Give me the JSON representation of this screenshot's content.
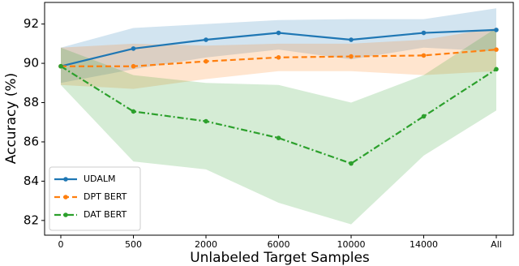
{
  "chart_data": {
    "type": "line",
    "xlabel": "Unlabeled Target Samples",
    "ylabel": "Accuracy (%)",
    "categories": [
      "0",
      "500",
      "2000",
      "6000",
      "10000",
      "14000",
      "All"
    ],
    "ylim": [
      81.25,
      93.1
    ],
    "yticks": [
      82,
      84,
      86,
      88,
      90,
      92
    ],
    "legend": "lower left",
    "series": [
      {
        "name": "UDALM",
        "color": "#1f77b4",
        "linestyle": "solid",
        "values": [
          89.85,
          90.75,
          91.2,
          91.55,
          91.2,
          91.55,
          91.7
        ],
        "upper": [
          90.8,
          91.8,
          92.0,
          92.2,
          92.25,
          92.25,
          92.8
        ],
        "lower": [
          89.0,
          89.7,
          90.3,
          90.7,
          90.2,
          90.8,
          90.6
        ]
      },
      {
        "name": "DPT BERT",
        "color": "#ff7f0e",
        "linestyle": "dashed",
        "values": [
          89.85,
          89.85,
          90.1,
          90.3,
          90.35,
          90.4,
          90.7
        ],
        "upper": [
          90.8,
          91.0,
          90.9,
          91.0,
          91.0,
          91.2,
          91.8
        ],
        "lower": [
          88.9,
          88.7,
          89.2,
          89.6,
          89.6,
          89.4,
          89.6
        ]
      },
      {
        "name": "DAT BERT",
        "color": "#2ca02c",
        "linestyle": "dashdot",
        "values": [
          89.85,
          87.55,
          87.05,
          86.2,
          84.9,
          87.3,
          89.7
        ],
        "upper": [
          90.8,
          89.4,
          89.0,
          88.9,
          88.0,
          89.4,
          91.8
        ],
        "lower": [
          88.9,
          85.0,
          84.6,
          82.9,
          81.8,
          85.3,
          87.6
        ]
      }
    ]
  }
}
